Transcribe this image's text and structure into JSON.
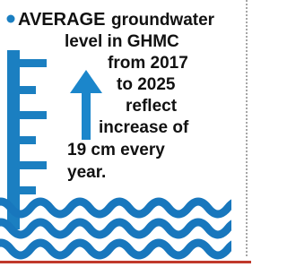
{
  "bullet": {
    "lead": "AVERAGE",
    "lines": [
      "groundwater",
      "level in GHMC",
      "from 2017",
      "to 2025",
      "reflect",
      "increase of",
      "19 cm every",
      "year."
    ]
  }
}
